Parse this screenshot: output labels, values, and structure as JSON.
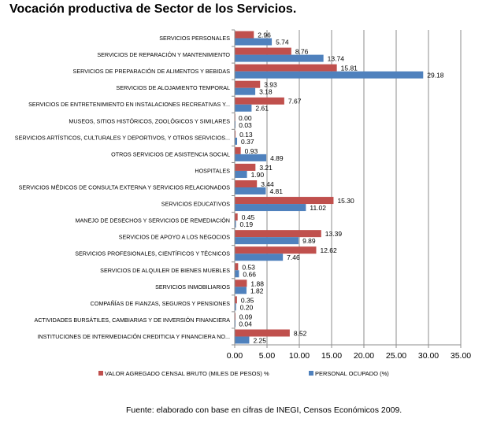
{
  "chart_data": {
    "type": "bar",
    "orientation": "horizontal",
    "title": "Vocación productiva de Sector de los Servicios.",
    "xlabel": "",
    "ylabel": "",
    "xlim": [
      0,
      35
    ],
    "xticks": [
      0,
      5,
      10,
      15,
      20,
      25,
      30,
      35
    ],
    "xtick_labels": [
      "0.00",
      "5.00",
      "10.00",
      "15.00",
      "20.00",
      "25.00",
      "30.00",
      "35.00"
    ],
    "grid": "vertical",
    "legend_position": "bottom",
    "categories": [
      "SERVICIOS PERSONALES",
      "SERVICIOS DE REPARACIÓN Y MANTENIMIENTO",
      "SERVICIOS DE PREPARACIÓN DE ALIMENTOS Y BEBIDAS",
      "SERVICIOS DE ALOJAMIENTO TEMPORAL",
      "SERVICIOS DE ENTRETENIMIENTO EN INSTALACIONES RECREATIVAS Y...",
      "MUSEOS, SITIOS HISTÓRICOS, ZOOLÓGICOS Y SIMILARES",
      "SERVICIOS ARTÍSTICOS, CULTURALES Y DEPORTIVOS, Y OTROS SERVICIOS...",
      "OTROS SERVICIOS DE ASISTENCIA SOCIAL",
      "HOSPITALES",
      "SERVICIOS MÉDICOS DE CONSULTA EXTERNA Y SERVICIOS RELACIONADOS",
      "SERVICIOS EDUCATIVOS",
      "MANEJO DE DESECHOS Y SERVICIOS DE REMEDIACIÓN",
      "SERVICIOS DE APOYO A LOS NEGOCIOS",
      "SERVICIOS PROFESIONALES, CIENTÍFICOS Y TÉCNICOS",
      "SERVICIOS DE ALQUILER DE BIENES MUEBLES",
      "SERVICIOS INMOBILIARIOS",
      "COMPAÑÍAS DE FIANZAS, SEGUROS Y PENSIONES",
      "ACTIVIDADES BURSÁTILES, CAMBIARIAS Y DE INVERSIÓN FINANCIERA",
      "INSTITUCIONES DE INTERMEDIACIÓN CREDITICIA Y FINANCIERA NO..."
    ],
    "series": [
      {
        "name": "VALOR AGREGADO CENSAL BRUTO (MILES DE PESOS) %",
        "color": "#c0504d",
        "values": [
          2.96,
          8.76,
          15.81,
          3.93,
          7.67,
          0.0,
          0.13,
          0.93,
          3.21,
          3.44,
          15.3,
          0.45,
          13.39,
          12.62,
          0.53,
          1.88,
          0.35,
          0.09,
          8.52
        ],
        "labels": [
          "2.96",
          "8.76",
          "15.81",
          "3.93",
          "7.67",
          "0.00",
          "0.13",
          "0.93",
          "3.21",
          "3.44",
          "15.30",
          "0.45",
          "13.39",
          "12.62",
          "0.53",
          "1.88",
          "0.35",
          "0.09",
          "8.52"
        ]
      },
      {
        "name": "PERSONAL OCUPADO (%)",
        "color": "#4f81bd",
        "values": [
          5.74,
          13.74,
          29.18,
          3.18,
          2.61,
          0.03,
          0.37,
          4.89,
          1.9,
          4.81,
          11.02,
          0.19,
          9.89,
          7.46,
          0.66,
          1.82,
          0.2,
          0.04,
          2.25
        ],
        "labels": [
          "5.74",
          "13.74",
          "29.18",
          "3.18",
          "2.61",
          "0.03",
          "0.37",
          "4.89",
          "1.90",
          "4.81",
          "11.02",
          "0.19",
          "9.89",
          "7.46",
          "0.66",
          "1.82",
          "0.20",
          "0.04",
          "2.25"
        ]
      }
    ]
  },
  "source_note": "Fuente: elaborado con base en cifras de INEGI, Censos Económicos 2009."
}
